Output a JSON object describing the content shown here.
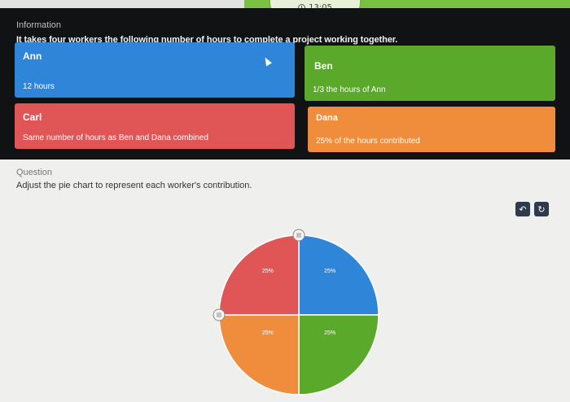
{
  "timer": {
    "time": "13:05",
    "icon": "clock-icon"
  },
  "information": {
    "label": "Information",
    "text": "It takes four workers the following number of hours to complete a project working together."
  },
  "workers": [
    {
      "name": "Ann",
      "detail": "12 hours",
      "color": "#2f86d9"
    },
    {
      "name": "Ben",
      "detail": "1/3 the hours of Ann",
      "color": "#5ba92a"
    },
    {
      "name": "Carl",
      "detail": "Same number of hours as Ben and Dana combined",
      "color": "#e05656"
    },
    {
      "name": "Dana",
      "detail": "25% of the hours contributed",
      "color": "#f08d3c"
    }
  ],
  "question": {
    "label": "Question",
    "text": "Adjust the pie chart to represent each worker's contribution."
  },
  "toolbar": {
    "undo_icon": "undo-icon",
    "reset_icon": "reset-icon"
  },
  "chart_data": {
    "type": "pie",
    "slices": [
      {
        "label": "Ann",
        "value": 25,
        "text": "25%",
        "color": "#2f86d9"
      },
      {
        "label": "Ben",
        "value": 25,
        "text": "25%",
        "color": "#5ba92a"
      },
      {
        "label": "Dana",
        "value": 25,
        "text": "25%",
        "color": "#f08d3c"
      },
      {
        "label": "Carl",
        "value": 25,
        "text": "25%",
        "color": "#e05656"
      }
    ]
  }
}
